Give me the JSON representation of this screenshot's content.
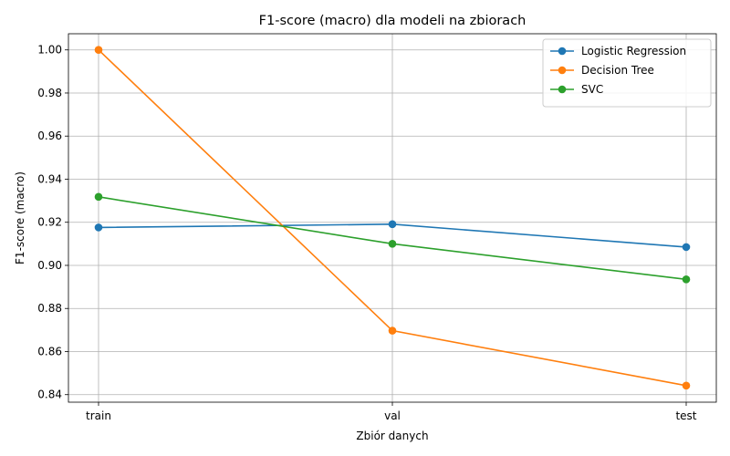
{
  "chart_data": {
    "type": "line",
    "title": "F1-score (macro) dla modeli na zbiorach",
    "xlabel": "Zbiór danych",
    "ylabel": "F1-score (macro)",
    "categories": [
      "train",
      "val",
      "test"
    ],
    "ylim": [
      0.8365,
      1.0075
    ],
    "yticks": [
      0.84,
      0.86,
      0.88,
      0.9,
      0.92,
      0.94,
      0.96,
      0.98,
      1.0
    ],
    "ytick_labels": [
      "0.84",
      "0.86",
      "0.88",
      "0.90",
      "0.92",
      "0.94",
      "0.96",
      "0.98",
      "1.00"
    ],
    "grid": true,
    "legend_position": "top-right",
    "markers": "circle",
    "series": [
      {
        "name": "Logistic Regression",
        "color": "#1f77b4",
        "values": [
          0.9176,
          0.9191,
          0.9085
        ]
      },
      {
        "name": "Decision Tree",
        "color": "#ff7f0e",
        "values": [
          1.0,
          0.8697,
          0.8442
        ]
      },
      {
        "name": "SVC",
        "color": "#2ca02c",
        "values": [
          0.9318,
          0.91,
          0.8935
        ]
      }
    ]
  }
}
